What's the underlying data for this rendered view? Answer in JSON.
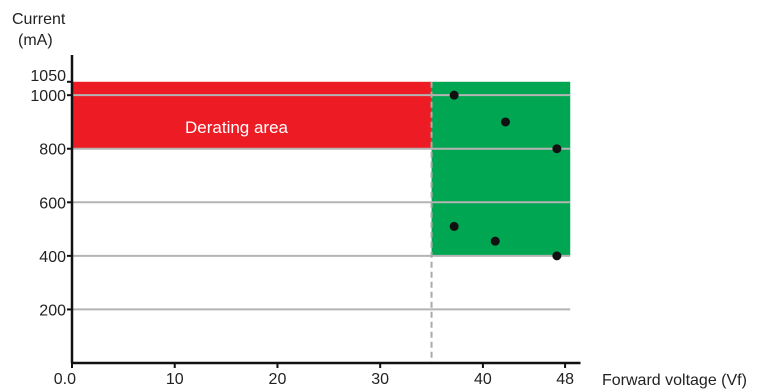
{
  "chart_data": {
    "type": "scatter",
    "title": "",
    "ylabel_line1": "Current",
    "ylabel_line2": "(mA)",
    "xlabel": "Forward voltage (Vf)",
    "x_ticks": [
      {
        "value": 0,
        "label": "0.0"
      },
      {
        "value": 10,
        "label": "10"
      },
      {
        "value": 20,
        "label": "20"
      },
      {
        "value": 30,
        "label": "30"
      },
      {
        "value": 40,
        "label": "40"
      },
      {
        "value": 48,
        "label": "48"
      }
    ],
    "y_ticks": [
      {
        "value": 200,
        "label": "200"
      },
      {
        "value": 400,
        "label": "400"
      },
      {
        "value": 600,
        "label": "600"
      },
      {
        "value": 800,
        "label": "800"
      },
      {
        "value": 1000,
        "label": "1000"
      },
      {
        "value": 1050,
        "label": "1050"
      }
    ],
    "xlim": [
      0,
      49.5
    ],
    "ylim": [
      0,
      1150
    ],
    "gridlines_y": [
      200,
      400,
      600,
      800,
      1000
    ],
    "regions": [
      {
        "name": "derating-area",
        "label": "Derating area",
        "x": [
          0,
          35
        ],
        "y": [
          800,
          1050
        ],
        "color": "#ed1c24"
      },
      {
        "name": "operating-window",
        "label": "",
        "x": [
          35,
          48.5
        ],
        "y": [
          400,
          1050
        ],
        "color": "#00a651"
      }
    ],
    "reference_line": {
      "x": 35,
      "style": "dashed",
      "color": "#aaaaaa"
    },
    "points": [
      {
        "x": 37.2,
        "y": 1000
      },
      {
        "x": 42.2,
        "y": 900
      },
      {
        "x": 47.2,
        "y": 800
      },
      {
        "x": 37.2,
        "y": 510
      },
      {
        "x": 41.2,
        "y": 455
      },
      {
        "x": 47.2,
        "y": 400
      }
    ],
    "colors": {
      "grid": "#b4b4b4",
      "axis": "#111111",
      "point": "#111111"
    }
  }
}
